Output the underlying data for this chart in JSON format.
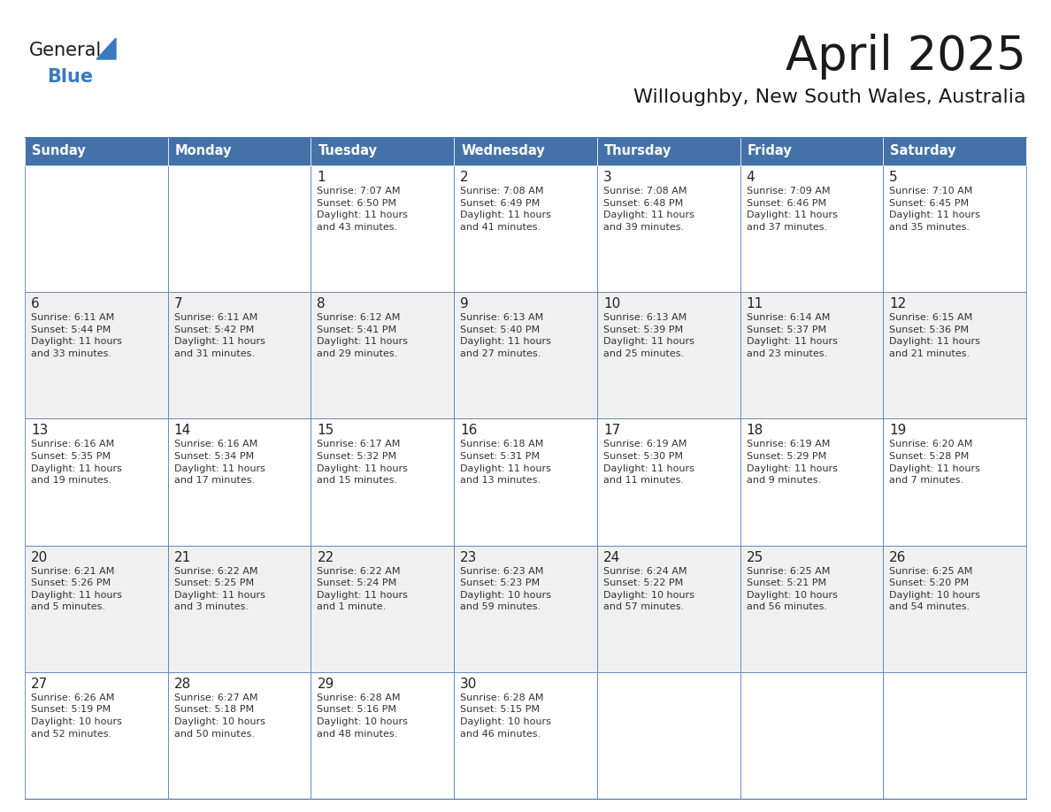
{
  "title": "April 2025",
  "subtitle": "Willoughby, New South Wales, Australia",
  "days_of_week": [
    "Sunday",
    "Monday",
    "Tuesday",
    "Wednesday",
    "Thursday",
    "Friday",
    "Saturday"
  ],
  "header_bg": "#4472a8",
  "header_text": "#ffffff",
  "row_bg_odd": "#f0f0f0",
  "row_bg_even": "#ffffff",
  "cell_border_color": "#4472a8",
  "title_color": "#1a1a1a",
  "subtitle_color": "#1a1a1a",
  "logo_general_color": "#1a1a1a",
  "logo_blue_color": "#3a7bbf",
  "fig_width": 11.88,
  "fig_height": 9.18,
  "dpi": 100,
  "calendar_data": [
    [
      {
        "day": "",
        "info": ""
      },
      {
        "day": "",
        "info": ""
      },
      {
        "day": "1",
        "info": "Sunrise: 7:07 AM\nSunset: 6:50 PM\nDaylight: 11 hours\nand 43 minutes."
      },
      {
        "day": "2",
        "info": "Sunrise: 7:08 AM\nSunset: 6:49 PM\nDaylight: 11 hours\nand 41 minutes."
      },
      {
        "day": "3",
        "info": "Sunrise: 7:08 AM\nSunset: 6:48 PM\nDaylight: 11 hours\nand 39 minutes."
      },
      {
        "day": "4",
        "info": "Sunrise: 7:09 AM\nSunset: 6:46 PM\nDaylight: 11 hours\nand 37 minutes."
      },
      {
        "day": "5",
        "info": "Sunrise: 7:10 AM\nSunset: 6:45 PM\nDaylight: 11 hours\nand 35 minutes."
      }
    ],
    [
      {
        "day": "6",
        "info": "Sunrise: 6:11 AM\nSunset: 5:44 PM\nDaylight: 11 hours\nand 33 minutes."
      },
      {
        "day": "7",
        "info": "Sunrise: 6:11 AM\nSunset: 5:42 PM\nDaylight: 11 hours\nand 31 minutes."
      },
      {
        "day": "8",
        "info": "Sunrise: 6:12 AM\nSunset: 5:41 PM\nDaylight: 11 hours\nand 29 minutes."
      },
      {
        "day": "9",
        "info": "Sunrise: 6:13 AM\nSunset: 5:40 PM\nDaylight: 11 hours\nand 27 minutes."
      },
      {
        "day": "10",
        "info": "Sunrise: 6:13 AM\nSunset: 5:39 PM\nDaylight: 11 hours\nand 25 minutes."
      },
      {
        "day": "11",
        "info": "Sunrise: 6:14 AM\nSunset: 5:37 PM\nDaylight: 11 hours\nand 23 minutes."
      },
      {
        "day": "12",
        "info": "Sunrise: 6:15 AM\nSunset: 5:36 PM\nDaylight: 11 hours\nand 21 minutes."
      }
    ],
    [
      {
        "day": "13",
        "info": "Sunrise: 6:16 AM\nSunset: 5:35 PM\nDaylight: 11 hours\nand 19 minutes."
      },
      {
        "day": "14",
        "info": "Sunrise: 6:16 AM\nSunset: 5:34 PM\nDaylight: 11 hours\nand 17 minutes."
      },
      {
        "day": "15",
        "info": "Sunrise: 6:17 AM\nSunset: 5:32 PM\nDaylight: 11 hours\nand 15 minutes."
      },
      {
        "day": "16",
        "info": "Sunrise: 6:18 AM\nSunset: 5:31 PM\nDaylight: 11 hours\nand 13 minutes."
      },
      {
        "day": "17",
        "info": "Sunrise: 6:19 AM\nSunset: 5:30 PM\nDaylight: 11 hours\nand 11 minutes."
      },
      {
        "day": "18",
        "info": "Sunrise: 6:19 AM\nSunset: 5:29 PM\nDaylight: 11 hours\nand 9 minutes."
      },
      {
        "day": "19",
        "info": "Sunrise: 6:20 AM\nSunset: 5:28 PM\nDaylight: 11 hours\nand 7 minutes."
      }
    ],
    [
      {
        "day": "20",
        "info": "Sunrise: 6:21 AM\nSunset: 5:26 PM\nDaylight: 11 hours\nand 5 minutes."
      },
      {
        "day": "21",
        "info": "Sunrise: 6:22 AM\nSunset: 5:25 PM\nDaylight: 11 hours\nand 3 minutes."
      },
      {
        "day": "22",
        "info": "Sunrise: 6:22 AM\nSunset: 5:24 PM\nDaylight: 11 hours\nand 1 minute."
      },
      {
        "day": "23",
        "info": "Sunrise: 6:23 AM\nSunset: 5:23 PM\nDaylight: 10 hours\nand 59 minutes."
      },
      {
        "day": "24",
        "info": "Sunrise: 6:24 AM\nSunset: 5:22 PM\nDaylight: 10 hours\nand 57 minutes."
      },
      {
        "day": "25",
        "info": "Sunrise: 6:25 AM\nSunset: 5:21 PM\nDaylight: 10 hours\nand 56 minutes."
      },
      {
        "day": "26",
        "info": "Sunrise: 6:25 AM\nSunset: 5:20 PM\nDaylight: 10 hours\nand 54 minutes."
      }
    ],
    [
      {
        "day": "27",
        "info": "Sunrise: 6:26 AM\nSunset: 5:19 PM\nDaylight: 10 hours\nand 52 minutes."
      },
      {
        "day": "28",
        "info": "Sunrise: 6:27 AM\nSunset: 5:18 PM\nDaylight: 10 hours\nand 50 minutes."
      },
      {
        "day": "29",
        "info": "Sunrise: 6:28 AM\nSunset: 5:16 PM\nDaylight: 10 hours\nand 48 minutes."
      },
      {
        "day": "30",
        "info": "Sunrise: 6:28 AM\nSunset: 5:15 PM\nDaylight: 10 hours\nand 46 minutes."
      },
      {
        "day": "",
        "info": ""
      },
      {
        "day": "",
        "info": ""
      },
      {
        "day": "",
        "info": ""
      }
    ]
  ]
}
